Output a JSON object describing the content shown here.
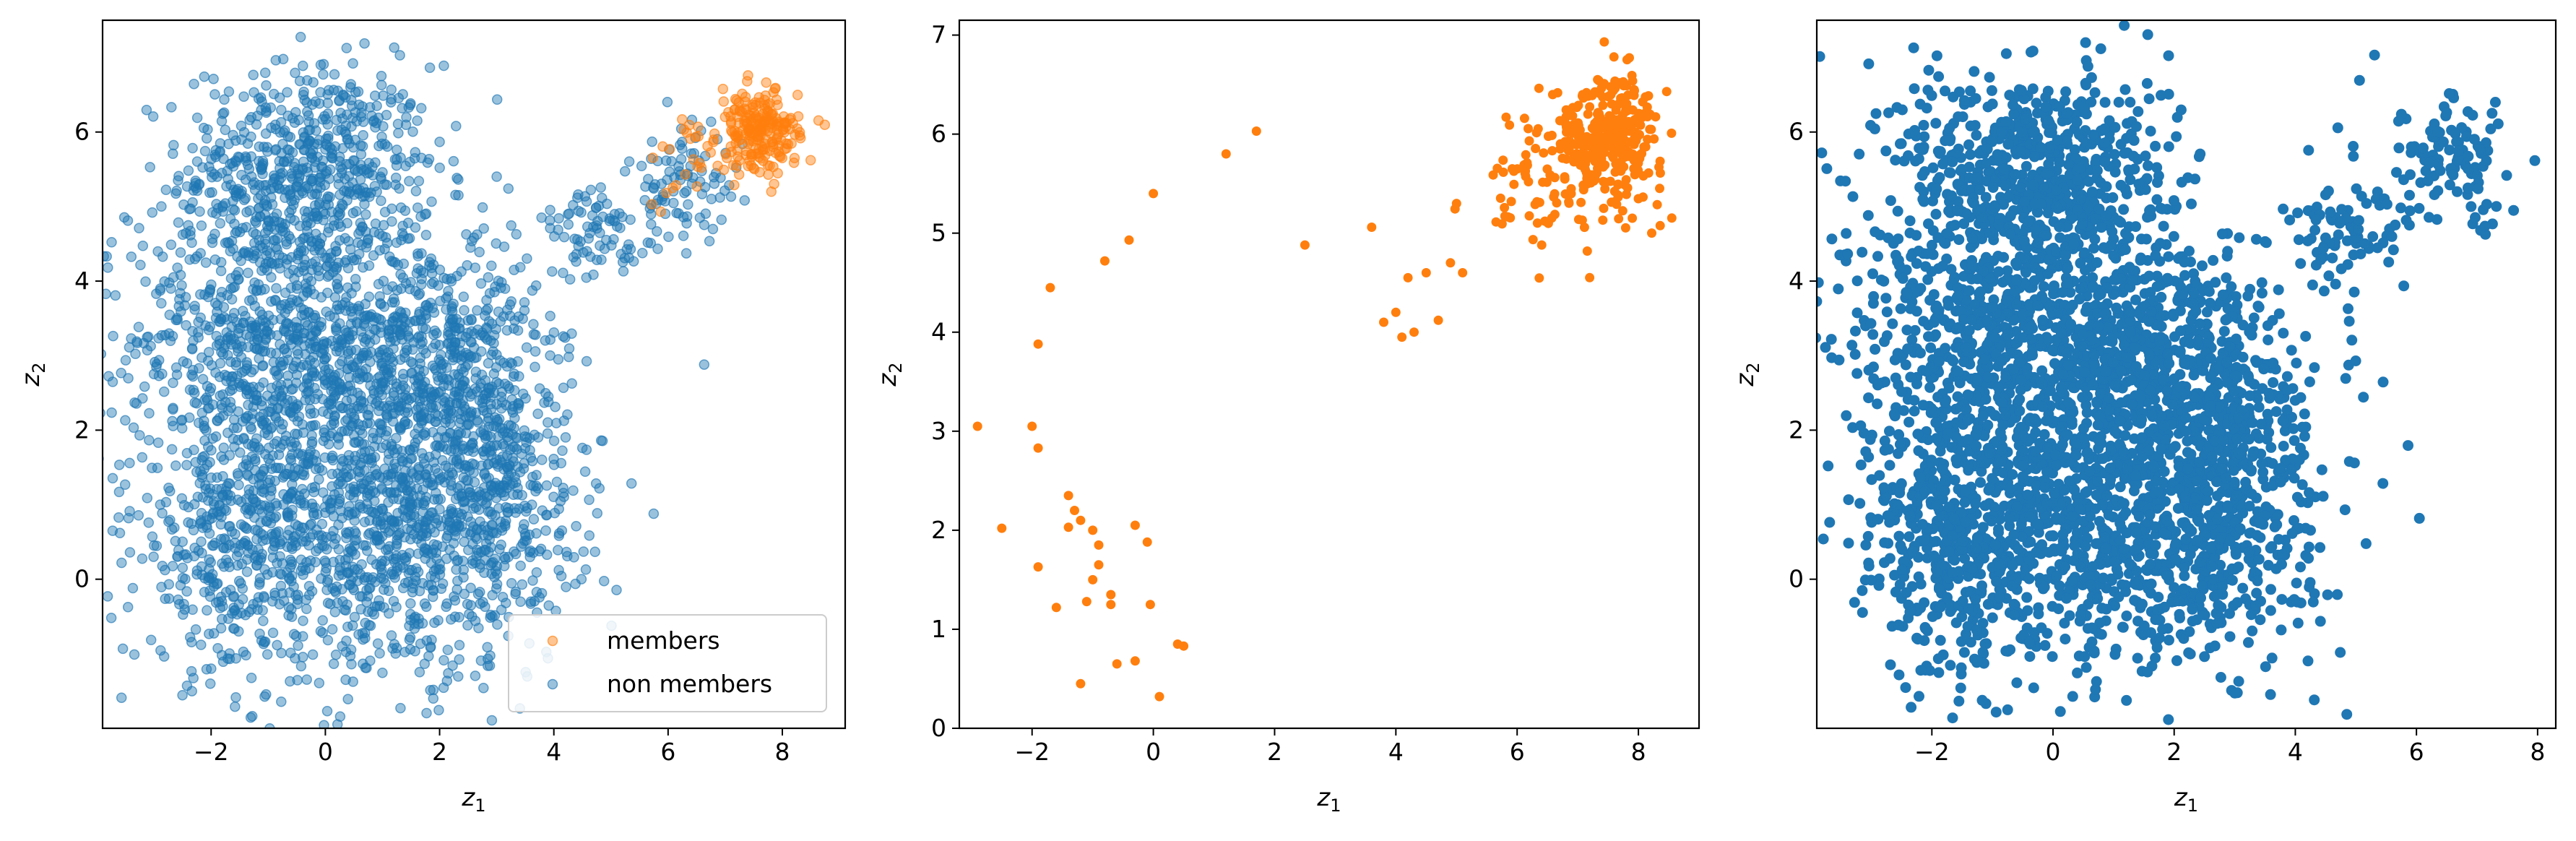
{
  "colors": {
    "members": "#ff7f0e",
    "non_members": "#1f77b4"
  },
  "chart_data": [
    {
      "type": "scatter",
      "xlabel": "z",
      "xlabel_sub": "1",
      "ylabel": "z",
      "ylabel_sub": "2",
      "xlim": [
        -3.9,
        9.1
      ],
      "ylim": [
        -2.0,
        7.5
      ],
      "xticks": [
        -2,
        0,
        2,
        4,
        6,
        8
      ],
      "yticks": [
        0,
        2,
        4,
        6
      ],
      "grid": false,
      "legend": {
        "placement": "lower-right",
        "entries": [
          "members",
          "non members"
        ]
      },
      "series": [
        {
          "name": "members",
          "color": "#ff7f0e",
          "alpha": 0.45,
          "clusters": [
            {
              "cx": 7.6,
              "cy": 6.0,
              "sx": 0.35,
              "sy": 0.28,
              "n": 220
            },
            {
              "cx": 6.4,
              "cy": 5.6,
              "sx": 0.4,
              "sy": 0.3,
              "n": 25
            }
          ]
        },
        {
          "name": "non members",
          "color": "#1f77b4",
          "alpha": 0.45,
          "clusters": [
            {
              "cx": -0.3,
              "cy": 5.5,
              "sx": 1.1,
              "sy": 0.7,
              "n": 600
            },
            {
              "cx": -1.0,
              "cy": 3.2,
              "sx": 1.2,
              "sy": 1.0,
              "n": 800
            },
            {
              "cx": 1.7,
              "cy": 3.0,
              "sx": 1.0,
              "sy": 0.9,
              "n": 600
            },
            {
              "cx": 1.2,
              "cy": 0.7,
              "sx": 1.5,
              "sy": 1.0,
              "n": 1000
            },
            {
              "cx": -1.6,
              "cy": 0.5,
              "sx": 0.8,
              "sy": 0.9,
              "n": 400
            },
            {
              "cx": 3.0,
              "cy": 1.5,
              "sx": 0.6,
              "sy": 1.0,
              "n": 300
            },
            {
              "cx": 4.8,
              "cy": 4.6,
              "sx": 0.5,
              "sy": 0.3,
              "n": 80
            },
            {
              "cx": 6.3,
              "cy": 5.3,
              "sx": 0.5,
              "sy": 0.4,
              "n": 90
            }
          ]
        }
      ]
    },
    {
      "type": "scatter",
      "xlabel": "z",
      "xlabel_sub": "1",
      "ylabel": "z",
      "ylabel_sub": "2",
      "xlim": [
        -3.2,
        9.0
      ],
      "ylim": [
        0,
        7.15
      ],
      "xticks": [
        -2,
        0,
        2,
        4,
        6,
        8
      ],
      "yticks": [
        0,
        1,
        2,
        3,
        4,
        5,
        6,
        7
      ],
      "grid": false,
      "series": [
        {
          "name": "",
          "color": "#ff7f0e",
          "alpha": 1,
          "points": [
            [
              -2.9,
              3.05
            ],
            [
              -2.5,
              2.02
            ],
            [
              -2.0,
              3.05
            ],
            [
              -1.9,
              2.83
            ],
            [
              -1.9,
              1.63
            ],
            [
              -1.9,
              3.88
            ],
            [
              -1.7,
              4.45
            ],
            [
              -1.6,
              1.22
            ],
            [
              -1.4,
              2.35
            ],
            [
              -1.4,
              2.03
            ],
            [
              -1.3,
              2.2
            ],
            [
              -1.2,
              2.1
            ],
            [
              -1.2,
              0.45
            ],
            [
              -1.1,
              1.28
            ],
            [
              -1.0,
              1.5
            ],
            [
              -1.0,
              2.0
            ],
            [
              -0.9,
              1.85
            ],
            [
              -0.9,
              1.65
            ],
            [
              -0.8,
              4.72
            ],
            [
              -0.7,
              1.25
            ],
            [
              -0.7,
              1.35
            ],
            [
              -0.6,
              0.65
            ],
            [
              -0.4,
              4.93
            ],
            [
              -0.3,
              2.05
            ],
            [
              -0.3,
              0.68
            ],
            [
              -0.1,
              1.88
            ],
            [
              -0.05,
              1.25
            ],
            [
              0.0,
              5.4
            ],
            [
              0.1,
              0.32
            ],
            [
              0.4,
              0.85
            ],
            [
              0.5,
              0.83
            ],
            [
              1.2,
              5.8
            ],
            [
              1.7,
              6.03
            ],
            [
              2.5,
              4.88
            ],
            [
              3.6,
              5.06
            ],
            [
              3.8,
              4.1
            ],
            [
              4.0,
              4.2
            ],
            [
              4.1,
              3.95
            ],
            [
              4.2,
              4.55
            ],
            [
              4.3,
              4.0
            ],
            [
              4.5,
              4.6
            ],
            [
              4.7,
              4.12
            ],
            [
              4.9,
              4.7
            ],
            [
              5.0,
              5.3
            ],
            [
              5.1,
              4.6
            ]
          ],
          "clusters": [
            {
              "cx": 7.5,
              "cy": 5.95,
              "sx": 0.45,
              "sy": 0.32,
              "n": 320
            },
            {
              "cx": 6.3,
              "cy": 5.5,
              "sx": 0.45,
              "sy": 0.35,
              "n": 60
            }
          ]
        }
      ]
    },
    {
      "type": "scatter",
      "xlabel": "z",
      "xlabel_sub": "1",
      "ylabel": "z",
      "ylabel_sub": "2",
      "xlim": [
        -3.9,
        8.3
      ],
      "ylim": [
        -2.0,
        7.5
      ],
      "xticks": [
        -2,
        0,
        2,
        4,
        6,
        8
      ],
      "yticks": [
        0,
        2,
        4,
        6
      ],
      "grid": false,
      "series": [
        {
          "name": "",
          "color": "#1f77b4",
          "alpha": 1,
          "clusters": [
            {
              "cx": -0.3,
              "cy": 5.5,
              "sx": 1.1,
              "sy": 0.7,
              "n": 600
            },
            {
              "cx": -1.0,
              "cy": 3.2,
              "sx": 1.2,
              "sy": 1.0,
              "n": 800
            },
            {
              "cx": 1.7,
              "cy": 3.0,
              "sx": 1.0,
              "sy": 0.9,
              "n": 600
            },
            {
              "cx": 1.2,
              "cy": 0.7,
              "sx": 1.5,
              "sy": 1.0,
              "n": 1000
            },
            {
              "cx": -1.6,
              "cy": 0.5,
              "sx": 0.8,
              "sy": 0.9,
              "n": 400
            },
            {
              "cx": 3.0,
              "cy": 1.5,
              "sx": 0.6,
              "sy": 1.0,
              "n": 300
            },
            {
              "cx": 4.8,
              "cy": 4.6,
              "sx": 0.5,
              "sy": 0.3,
              "n": 80
            },
            {
              "cx": 6.6,
              "cy": 5.6,
              "sx": 0.6,
              "sy": 0.45,
              "n": 110
            }
          ]
        }
      ]
    }
  ]
}
